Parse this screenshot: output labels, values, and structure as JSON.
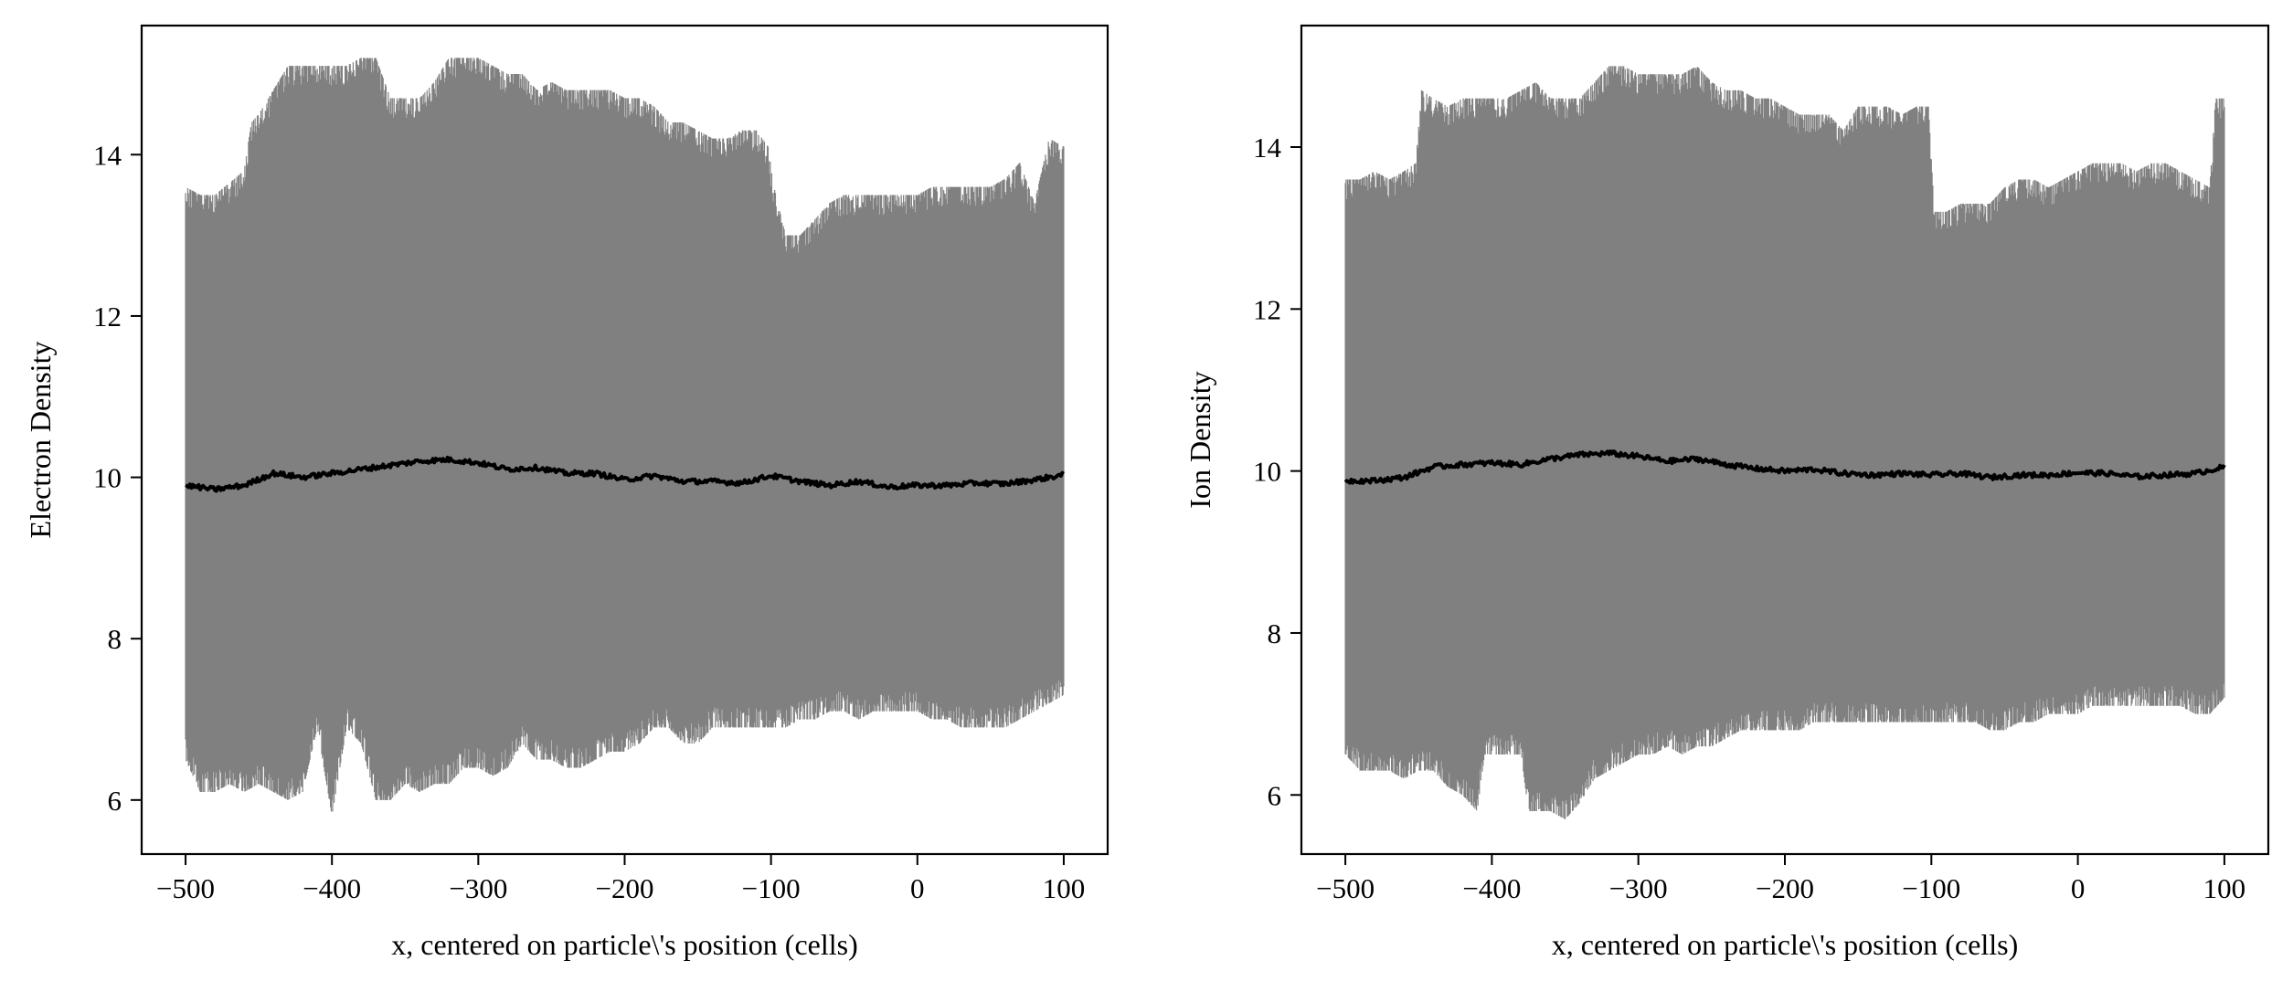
{
  "chart_data": [
    {
      "type": "line",
      "xlabel": "x, centered on particle\\'s position (cells)",
      "ylabel": "Electron Density",
      "xlim": [
        -530,
        130
      ],
      "ylim": [
        5.33,
        15.6
      ],
      "xticks": [
        -500,
        -400,
        -300,
        -200,
        -100,
        0,
        100
      ],
      "xtick_labels": [
        "−500",
        "−400",
        "−300",
        "−200",
        "−100",
        "0",
        "100"
      ],
      "yticks": [
        6,
        8,
        10,
        12,
        14
      ],
      "ytick_labels": [
        "6",
        "8",
        "10",
        "12",
        "14"
      ],
      "grid": false,
      "series": [
        {
          "role": "fluctuating density (many overlaid samples)",
          "color": "#808080",
          "upper_envelope": {
            "x": [
              -500,
              -490,
              -480,
              -460,
              -455,
              -450,
              -440,
              -430,
              -420,
              -400,
              -390,
              -380,
              -370,
              -360,
              -350,
              -340,
              -330,
              -320,
              -310,
              -300,
              -290,
              -280,
              -270,
              -260,
              -250,
              -240,
              -230,
              -220,
              -210,
              -200,
              -190,
              -180,
              -170,
              -160,
              -150,
              -140,
              -130,
              -120,
              -110,
              -102,
              -98,
              -90,
              -80,
              -70,
              -60,
              -50,
              -40,
              -30,
              -20,
              -10,
              0,
              10,
              20,
              30,
              40,
              50,
              60,
              70,
              80,
              90,
              100
            ],
            "y": [
              13.6,
              13.5,
              13.5,
              13.8,
              14.4,
              14.5,
              14.8,
              15.1,
              15.1,
              15.1,
              15.1,
              15.2,
              15.2,
              14.7,
              14.7,
              14.7,
              14.9,
              15.2,
              15.2,
              15.2,
              15.1,
              15.0,
              15.0,
              14.8,
              14.9,
              14.8,
              14.8,
              14.8,
              14.8,
              14.7,
              14.7,
              14.6,
              14.4,
              14.4,
              14.3,
              14.2,
              14.2,
              14.3,
              14.3,
              14.1,
              13.6,
              13.0,
              13.0,
              13.2,
              13.4,
              13.5,
              13.5,
              13.5,
              13.5,
              13.5,
              13.5,
              13.6,
              13.6,
              13.6,
              13.6,
              13.6,
              13.7,
              13.9,
              13.4,
              14.2,
              14.1
            ]
          },
          "lower_envelope": {
            "x": [
              -500,
              -490,
              -480,
              -470,
              -460,
              -450,
              -440,
              -430,
              -420,
              -410,
              -400,
              -390,
              -380,
              -370,
              -360,
              -350,
              -340,
              -330,
              -320,
              -310,
              -300,
              -290,
              -280,
              -270,
              -260,
              -250,
              -240,
              -230,
              -220,
              -210,
              -200,
              -190,
              -180,
              -170,
              -160,
              -150,
              -140,
              -130,
              -120,
              -110,
              -100,
              -90,
              -80,
              -70,
              -60,
              -50,
              -40,
              -30,
              -20,
              -10,
              0,
              10,
              20,
              30,
              40,
              50,
              60,
              70,
              80,
              90,
              100
            ],
            "y": [
              6.5,
              6.1,
              6.1,
              6.2,
              6.1,
              6.2,
              6.1,
              6.0,
              6.1,
              6.9,
              5.8,
              6.9,
              6.7,
              6.0,
              6.0,
              6.2,
              6.1,
              6.2,
              6.2,
              6.4,
              6.4,
              6.3,
              6.4,
              6.7,
              6.5,
              6.5,
              6.4,
              6.4,
              6.5,
              6.6,
              6.6,
              6.7,
              6.9,
              6.9,
              6.7,
              6.7,
              6.9,
              6.9,
              6.9,
              6.9,
              6.9,
              6.9,
              7.0,
              7.0,
              7.1,
              7.1,
              7.0,
              7.1,
              7.1,
              7.1,
              7.1,
              7.0,
              7.0,
              6.9,
              6.9,
              6.9,
              6.9,
              7.0,
              7.1,
              7.2,
              7.3
            ]
          }
        },
        {
          "role": "average density",
          "color": "#000000",
          "x": [
            -500,
            -480,
            -460,
            -440,
            -420,
            -400,
            -380,
            -360,
            -340,
            -320,
            -300,
            -280,
            -260,
            -240,
            -220,
            -200,
            -180,
            -160,
            -140,
            -120,
            -100,
            -80,
            -60,
            -40,
            -20,
            0,
            20,
            40,
            60,
            80,
            100
          ],
          "y": [
            9.9,
            9.85,
            9.9,
            10.05,
            10.0,
            10.05,
            10.1,
            10.15,
            10.2,
            10.22,
            10.18,
            10.1,
            10.12,
            10.05,
            10.05,
            9.97,
            10.02,
            9.95,
            9.95,
            9.93,
            10.02,
            9.95,
            9.9,
            9.95,
            9.88,
            9.9,
            9.9,
            9.93,
            9.92,
            9.97,
            10.03
          ]
        }
      ]
    },
    {
      "type": "line",
      "xlabel": "x, centered on particle\\'s position (cells)",
      "ylabel": "Ion Density",
      "xlim": [
        -530,
        130
      ],
      "ylim": [
        5.27,
        15.5
      ],
      "xticks": [
        -500,
        -400,
        -300,
        -200,
        -100,
        0,
        100
      ],
      "xtick_labels": [
        "−500",
        "−400",
        "−300",
        "−200",
        "−100",
        "0",
        "100"
      ],
      "yticks": [
        6,
        8,
        10,
        12,
        14
      ],
      "ytick_labels": [
        "6",
        "8",
        "10",
        "12",
        "14"
      ],
      "grid": false,
      "series": [
        {
          "role": "fluctuating density (many overlaid samples)",
          "color": "#808080",
          "upper_envelope": {
            "x": [
              -500,
              -490,
              -480,
              -470,
              -460,
              -452,
              -448,
              -440,
              -430,
              -420,
              -400,
              -390,
              -380,
              -370,
              -360,
              -350,
              -340,
              -330,
              -320,
              -310,
              -300,
              -290,
              -280,
              -270,
              -260,
              -250,
              -240,
              -230,
              -220,
              -210,
              -200,
              -190,
              -180,
              -170,
              -160,
              -150,
              -140,
              -130,
              -120,
              -110,
              -102,
              -98,
              -90,
              -80,
              -70,
              -60,
              -50,
              -40,
              -30,
              -20,
              -10,
              0,
              10,
              20,
              30,
              40,
              50,
              60,
              70,
              80,
              90,
              94,
              100
            ],
            "y": [
              13.6,
              13.6,
              13.7,
              13.6,
              13.7,
              13.8,
              14.7,
              14.6,
              14.5,
              14.6,
              14.6,
              14.6,
              14.7,
              14.8,
              14.6,
              14.6,
              14.6,
              14.8,
              15.0,
              15.0,
              14.9,
              14.9,
              14.9,
              14.9,
              15.0,
              14.8,
              14.7,
              14.7,
              14.6,
              14.6,
              14.5,
              14.4,
              14.4,
              14.4,
              14.2,
              14.5,
              14.5,
              14.5,
              14.4,
              14.5,
              14.5,
              13.2,
              13.2,
              13.3,
              13.3,
              13.3,
              13.5,
              13.6,
              13.6,
              13.5,
              13.6,
              13.7,
              13.8,
              13.8,
              13.8,
              13.7,
              13.8,
              13.8,
              13.7,
              13.6,
              13.5,
              14.6,
              14.6
            ]
          },
          "lower_envelope": {
            "x": [
              -500,
              -490,
              -480,
              -470,
              -460,
              -450,
              -440,
              -430,
              -420,
              -410,
              -405,
              -400,
              -390,
              -380,
              -375,
              -370,
              -360,
              -350,
              -340,
              -330,
              -320,
              -310,
              -300,
              -290,
              -280,
              -270,
              -260,
              -250,
              -240,
              -230,
              -220,
              -210,
              -200,
              -190,
              -180,
              -170,
              -160,
              -150,
              -140,
              -130,
              -120,
              -110,
              -100,
              -90,
              -80,
              -70,
              -60,
              -50,
              -40,
              -30,
              -20,
              -10,
              0,
              10,
              20,
              30,
              40,
              50,
              60,
              70,
              80,
              90,
              100
            ],
            "y": [
              6.5,
              6.3,
              6.3,
              6.3,
              6.2,
              6.3,
              6.3,
              6.1,
              6.0,
              5.8,
              6.5,
              6.5,
              6.5,
              6.5,
              5.8,
              5.8,
              5.8,
              5.7,
              5.9,
              6.2,
              6.3,
              6.4,
              6.5,
              6.5,
              6.6,
              6.5,
              6.6,
              6.6,
              6.7,
              6.8,
              6.8,
              6.8,
              6.8,
              6.8,
              6.9,
              6.9,
              6.9,
              6.9,
              6.9,
              6.9,
              6.9,
              6.9,
              6.9,
              6.9,
              6.9,
              6.9,
              6.8,
              6.8,
              6.9,
              6.9,
              7.0,
              7.0,
              7.0,
              7.1,
              7.1,
              7.1,
              7.1,
              7.1,
              7.1,
              7.1,
              7.0,
              7.0,
              7.2
            ]
          }
        },
        {
          "role": "average density",
          "color": "#000000",
          "x": [
            -500,
            -480,
            -460,
            -440,
            -420,
            -400,
            -380,
            -360,
            -340,
            -320,
            -300,
            -280,
            -260,
            -240,
            -220,
            -200,
            -180,
            -160,
            -140,
            -120,
            -100,
            -80,
            -60,
            -40,
            -20,
            0,
            20,
            40,
            60,
            80,
            100
          ],
          "y": [
            9.88,
            9.88,
            9.92,
            10.05,
            10.08,
            10.1,
            10.08,
            10.15,
            10.2,
            10.22,
            10.18,
            10.12,
            10.15,
            10.08,
            10.03,
            10.0,
            10.02,
            9.97,
            9.95,
            9.97,
            9.95,
            9.97,
            9.92,
            9.95,
            9.95,
            9.98,
            9.97,
            9.93,
            9.95,
            9.97,
            10.05
          ]
        }
      ]
    }
  ]
}
